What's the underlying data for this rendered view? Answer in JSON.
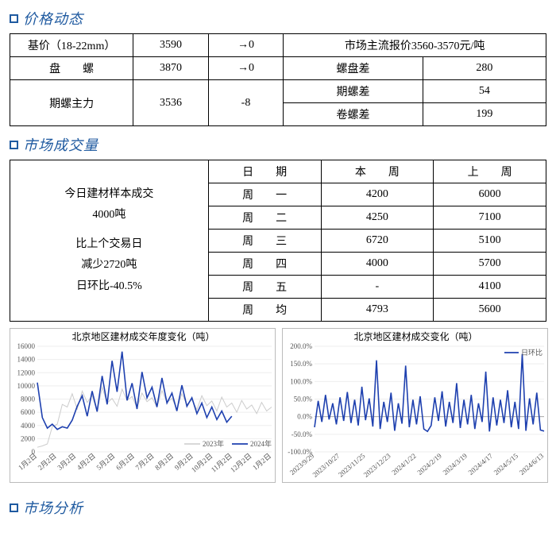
{
  "sections": {
    "price": "价格动态",
    "volume": "市场成交量",
    "analysis": "市场分析"
  },
  "price_table": {
    "r1c1": "基价（18-22mm）",
    "r1c2": "3590",
    "r1c3": "→0",
    "r1c4": "市场主流报价3560-3570元/吨",
    "r2c1": "盘　　螺",
    "r2c2": "3870",
    "r2c3": "→0",
    "r2c4": "螺盘差",
    "r2c5": "280",
    "r3c1": "期螺主力",
    "r3c2": "3536",
    "r3c3": "-8",
    "r3c4a": "期螺差",
    "r3c5a": "54",
    "r3c4b": "卷螺差",
    "r3c5b": "199"
  },
  "volume_left": {
    "l1": "今日建材样本成交",
    "l2": "4000吨",
    "l3": "比上个交易日",
    "l4": "减少2720吨",
    "l5": "日环比-40.5%"
  },
  "volume_table": {
    "h1": "日　　期",
    "h2": "本　　周",
    "h3": "上　　周",
    "rows": [
      {
        "d": "周　　一",
        "cur": "4200",
        "prev": "6000"
      },
      {
        "d": "周　　二",
        "cur": "4250",
        "prev": "7100"
      },
      {
        "d": "周　　三",
        "cur": "6720",
        "prev": "5100"
      },
      {
        "d": "周　　四",
        "cur": "4000",
        "prev": "5700"
      },
      {
        "d": "周　　五",
        "cur": "-",
        "prev": "4100"
      },
      {
        "d": "周　　均",
        "cur": "4793",
        "prev": "5600"
      }
    ]
  },
  "chart1": {
    "title": "北京地区建材成交年度变化（吨）",
    "type": "line",
    "ylim": [
      0,
      16000
    ],
    "ytick_step": 2000,
    "xlabels": [
      "1月2日",
      "2月2日",
      "3月2日",
      "4月2日",
      "5月2日",
      "6月2日",
      "7月2日",
      "8月2日",
      "9月2日",
      "10月2日",
      "11月2日",
      "12月2日",
      "1月2日"
    ],
    "legend": [
      "2023年",
      "2024年"
    ],
    "colors": {
      "prev": "#cccccc",
      "this": "#1e40af",
      "grid": "#eeeeee",
      "bg": "#ffffff"
    },
    "label_fontsize": 9,
    "title_fontsize": 12,
    "series_prev": [
      700,
      900,
      1200,
      3800,
      4200,
      7200,
      6800,
      8800,
      6500,
      9200,
      7500,
      8500,
      6200,
      9800,
      7400,
      8100,
      6900,
      9500,
      7800,
      8400,
      6700,
      8900,
      7600,
      8200,
      6800,
      9300,
      7500,
      8100,
      6500,
      8800,
      7200,
      7900,
      6400,
      8500,
      7000,
      7700,
      6200,
      8300,
      6800,
      7400,
      6000,
      7800,
      6500,
      7100,
      5800,
      7500,
      6200,
      6800
    ],
    "series_this": [
      10500,
      5200,
      3600,
      4200,
      3400,
      3800,
      3600,
      4800,
      6900,
      8500,
      5400,
      9200,
      6100,
      11500,
      7200,
      13800,
      9100,
      15200,
      7800,
      10400,
      6500,
      12100,
      8200,
      9800,
      6800,
      11200,
      7400,
      8900,
      6200,
      10100,
      6900,
      8200,
      5800,
      7400,
      5200,
      6800,
      4900,
      6200,
      4500,
      5400
    ]
  },
  "chart2": {
    "title": "北京地区建材成交变化（吨）",
    "type": "line",
    "ylim": [
      -100,
      200
    ],
    "ytick_positions": [
      -100,
      -50,
      0,
      50,
      100,
      150,
      200
    ],
    "ytick_labels": [
      "-100.0%",
      "-50.0%",
      "0.0%",
      "50.0%",
      "100.0%",
      "150.0%",
      "200.0%"
    ],
    "xlabels": [
      "2023/9/29",
      "2023/10/27",
      "2023/11/25",
      "2023/12/23",
      "2024/1/22",
      "2024/2/19",
      "2024/3/19",
      "2024/4/17",
      "2024/5/15",
      "2024/6/13"
    ],
    "legend": [
      "日环比"
    ],
    "colors": {
      "this": "#1e40af",
      "grid": "#eeeeee",
      "bg": "#ffffff"
    },
    "label_fontsize": 9,
    "title_fontsize": 12,
    "series": [
      -30,
      45,
      -15,
      62,
      -8,
      38,
      -22,
      55,
      -12,
      70,
      -18,
      48,
      -25,
      85,
      -10,
      52,
      -28,
      160,
      -35,
      42,
      -15,
      68,
      -40,
      38,
      -20,
      145,
      -30,
      48,
      -22,
      58,
      -35,
      -42,
      -25,
      55,
      -12,
      72,
      -28,
      42,
      -18,
      95,
      -32,
      48,
      -22,
      62,
      -35,
      38,
      -15,
      128,
      -42,
      55,
      -25,
      48,
      -18,
      75,
      -30,
      42,
      -35,
      178,
      -40,
      52,
      -22,
      68,
      -38,
      -41
    ]
  }
}
